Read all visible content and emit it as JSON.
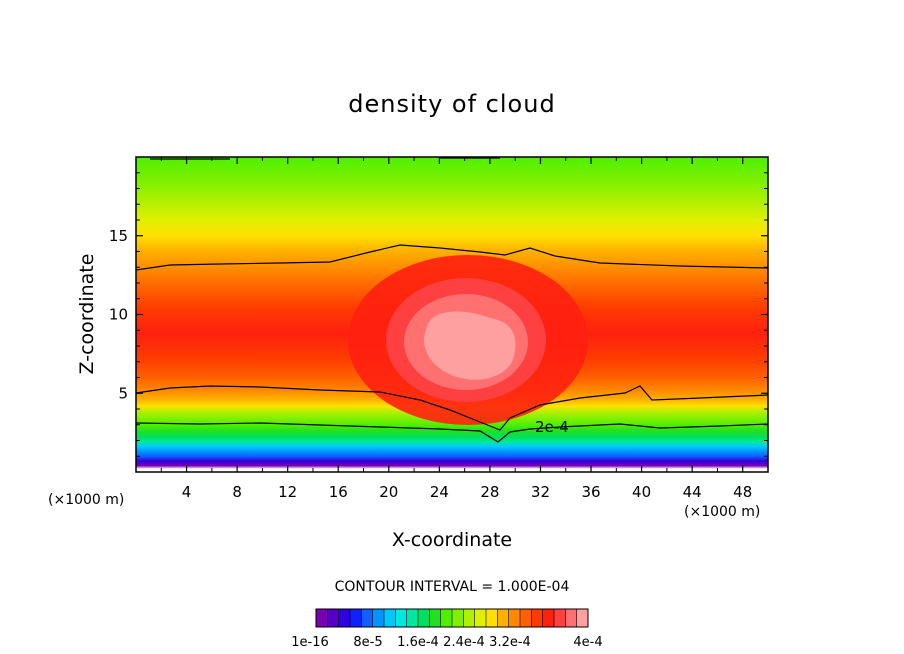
{
  "chart_data": {
    "type": "heatmap",
    "title": "density of cloud",
    "xlabel": "X-coordinate",
    "ylabel": "Z-coordinate",
    "x_unit_label": "(×1000 m)",
    "x_ticks": [
      4,
      8,
      12,
      16,
      20,
      24,
      28,
      32,
      36,
      40,
      44,
      48
    ],
    "y_ticks": [
      5,
      10,
      15
    ],
    "xlim": [
      0,
      50
    ],
    "ylim": [
      0,
      20
    ],
    "contour_interval_text": "CONTOUR INTERVAL = 1.000E-04",
    "contour_label": "2e-4",
    "colorbar_labels": [
      "1e-16",
      "8e-5",
      "1.6e-4",
      "2.4e-4",
      "3.2e-4",
      "4e-4"
    ],
    "colorbar_colors": [
      "#7a00b0",
      "#5500c8",
      "#3000e0",
      "#1020ff",
      "#1060ff",
      "#0095ff",
      "#00c8ff",
      "#00e8e0",
      "#00e8a0",
      "#00e060",
      "#20e020",
      "#4ef000",
      "#80f000",
      "#b0f000",
      "#e0f000",
      "#ffe000",
      "#ffb000",
      "#ff8800",
      "#ff6000",
      "#ff3c00",
      "#ff2010",
      "#ff4040",
      "#ff7070",
      "#ffa0a0"
    ],
    "grid": false,
    "legend": "bottom colorbar"
  }
}
